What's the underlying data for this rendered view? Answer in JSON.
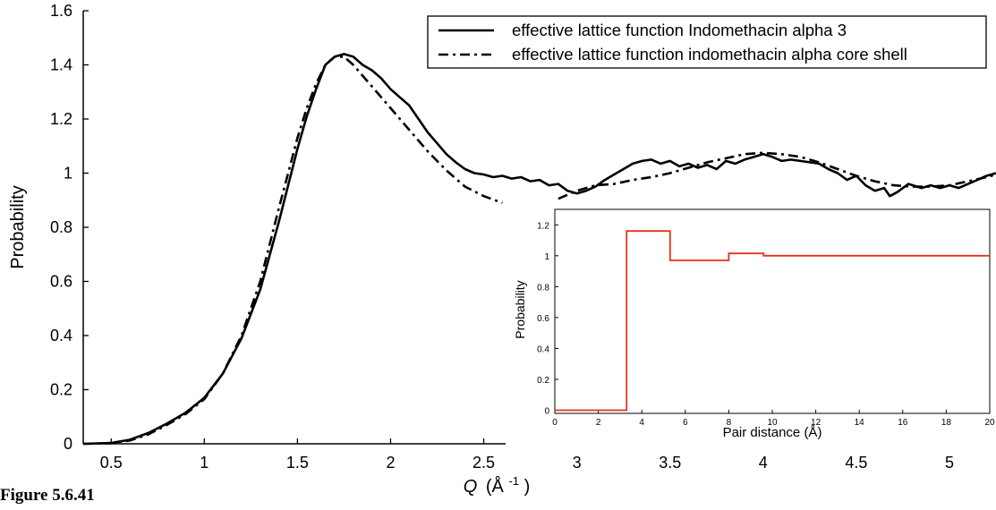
{
  "caption": "Figure 5.6.41",
  "chart_data": [
    {
      "type": "line",
      "title": "",
      "xlabel_symbol": "Q",
      "xlabel_units": "(Å",
      "xlabel_sup": "-1",
      "xlabel_close": ")",
      "ylabel": "Probability",
      "xlim": [
        0.35,
        5.25
      ],
      "ylim": [
        0,
        1.6
      ],
      "xticks": [
        0.5,
        1,
        1.5,
        2,
        2.5,
        3,
        3.5,
        4,
        4.5,
        5
      ],
      "xtick_labels": [
        "0.5",
        "1",
        "1.5",
        "2",
        "2.5",
        "3",
        "3.5",
        "4",
        "4.5",
        "5"
      ],
      "yticks": [
        0,
        0.2,
        0.4,
        0.6,
        0.8,
        1,
        1.2,
        1.4,
        1.6
      ],
      "ytick_labels": [
        "0",
        "0.2",
        "0.4",
        "0.6",
        "0.8",
        "1",
        "1.2",
        "1.4",
        "1.6"
      ],
      "grid": false,
      "legend_position": "top-right",
      "series": [
        {
          "name": "effective lattice function Indomethacin alpha 3",
          "style": "solid",
          "color": "#000000",
          "points": [
            [
              0.35,
              0.0
            ],
            [
              0.5,
              0.003
            ],
            [
              0.6,
              0.015
            ],
            [
              0.7,
              0.04
            ],
            [
              0.8,
              0.075
            ],
            [
              0.9,
              0.115
            ],
            [
              1.0,
              0.17
            ],
            [
              1.1,
              0.26
            ],
            [
              1.2,
              0.39
            ],
            [
              1.3,
              0.57
            ],
            [
              1.4,
              0.82
            ],
            [
              1.5,
              1.09
            ],
            [
              1.55,
              1.21
            ],
            [
              1.6,
              1.31
            ],
            [
              1.65,
              1.4
            ],
            [
              1.7,
              1.43
            ],
            [
              1.75,
              1.44
            ],
            [
              1.8,
              1.43
            ],
            [
              1.85,
              1.4
            ],
            [
              1.9,
              1.38
            ],
            [
              1.95,
              1.35
            ],
            [
              2.0,
              1.31
            ],
            [
              2.05,
              1.28
            ],
            [
              2.1,
              1.25
            ],
            [
              2.15,
              1.2
            ],
            [
              2.2,
              1.15
            ],
            [
              2.25,
              1.11
            ],
            [
              2.3,
              1.07
            ],
            [
              2.35,
              1.04
            ],
            [
              2.4,
              1.015
            ],
            [
              2.45,
              1.0
            ],
            [
              2.5,
              0.995
            ],
            [
              2.55,
              0.985
            ],
            [
              2.6,
              0.99
            ],
            [
              2.65,
              0.98
            ],
            [
              2.7,
              0.985
            ],
            [
              2.75,
              0.97
            ],
            [
              2.8,
              0.975
            ],
            [
              2.85,
              0.955
            ],
            [
              2.9,
              0.96
            ],
            [
              2.95,
              0.935
            ],
            [
              3.0,
              0.925
            ],
            [
              3.05,
              0.935
            ],
            [
              3.1,
              0.95
            ],
            [
              3.15,
              0.975
            ],
            [
              3.2,
              0.995
            ],
            [
              3.25,
              1.015
            ],
            [
              3.3,
              1.035
            ],
            [
              3.35,
              1.045
            ],
            [
              3.4,
              1.05
            ],
            [
              3.45,
              1.035
            ],
            [
              3.5,
              1.045
            ],
            [
              3.55,
              1.025
            ],
            [
              3.6,
              1.035
            ],
            [
              3.65,
              1.02
            ],
            [
              3.7,
              1.03
            ],
            [
              3.75,
              1.015
            ],
            [
              3.8,
              1.045
            ],
            [
              3.85,
              1.035
            ],
            [
              3.9,
              1.05
            ],
            [
              3.95,
              1.06
            ],
            [
              4.0,
              1.07
            ],
            [
              4.05,
              1.06
            ],
            [
              4.1,
              1.045
            ],
            [
              4.15,
              1.05
            ],
            [
              4.2,
              1.045
            ],
            [
              4.25,
              1.04
            ],
            [
              4.3,
              1.035
            ],
            [
              4.35,
              1.015
            ],
            [
              4.4,
              1.0
            ],
            [
              4.45,
              0.975
            ],
            [
              4.5,
              0.99
            ],
            [
              4.55,
              0.955
            ],
            [
              4.6,
              0.935
            ],
            [
              4.65,
              0.945
            ],
            [
              4.68,
              0.915
            ],
            [
              4.72,
              0.93
            ],
            [
              4.78,
              0.96
            ],
            [
              4.85,
              0.945
            ],
            [
              4.9,
              0.955
            ],
            [
              4.95,
              0.945
            ],
            [
              5.0,
              0.955
            ],
            [
              5.05,
              0.945
            ],
            [
              5.1,
              0.96
            ],
            [
              5.15,
              0.975
            ],
            [
              5.2,
              0.99
            ],
            [
              5.25,
              1.0
            ]
          ]
        },
        {
          "name": "effective lattice function indomethacin alpha core shell",
          "style": "dashdot",
          "color": "#000000",
          "points": [
            [
              0.35,
              0.0
            ],
            [
              0.5,
              0.002
            ],
            [
              0.6,
              0.012
            ],
            [
              0.7,
              0.035
            ],
            [
              0.8,
              0.07
            ],
            [
              0.9,
              0.11
            ],
            [
              1.0,
              0.165
            ],
            [
              1.1,
              0.26
            ],
            [
              1.2,
              0.4
            ],
            [
              1.3,
              0.6
            ],
            [
              1.4,
              0.87
            ],
            [
              1.5,
              1.13
            ],
            [
              1.55,
              1.24
            ],
            [
              1.6,
              1.33
            ],
            [
              1.65,
              1.4
            ],
            [
              1.7,
              1.43
            ],
            [
              1.75,
              1.43
            ],
            [
              1.8,
              1.4
            ],
            [
              1.85,
              1.36
            ],
            [
              1.9,
              1.32
            ],
            [
              2.0,
              1.24
            ],
            [
              2.1,
              1.16
            ],
            [
              2.2,
              1.08
            ],
            [
              2.3,
              1.01
            ],
            [
              2.4,
              0.95
            ],
            [
              2.5,
              0.915
            ],
            [
              2.6,
              0.89
            ]
          ],
          "points_2": [
            [
              2.9,
              0.905
            ],
            [
              3.0,
              0.935
            ],
            [
              3.1,
              0.955
            ],
            [
              3.2,
              0.96
            ],
            [
              3.3,
              0.975
            ],
            [
              3.4,
              0.985
            ],
            [
              3.5,
              1.0
            ],
            [
              3.6,
              1.02
            ],
            [
              3.7,
              1.04
            ],
            [
              3.8,
              1.055
            ],
            [
              3.9,
              1.07
            ],
            [
              4.0,
              1.075
            ],
            [
              4.1,
              1.07
            ],
            [
              4.2,
              1.06
            ],
            [
              4.3,
              1.04
            ],
            [
              4.4,
              1.015
            ],
            [
              4.5,
              0.99
            ],
            [
              4.6,
              0.97
            ],
            [
              4.7,
              0.955
            ],
            [
              4.8,
              0.95
            ],
            [
              4.9,
              0.95
            ],
            [
              5.0,
              0.955
            ],
            [
              5.1,
              0.97
            ],
            [
              5.2,
              0.985
            ],
            [
              5.25,
              0.995
            ]
          ]
        }
      ]
    },
    {
      "type": "line",
      "title": "",
      "xlabel": "Pair distance (Å)",
      "ylabel": "Probability",
      "xlim": [
        0,
        20
      ],
      "ylim": [
        -0.02,
        1.3
      ],
      "xticks": [
        0,
        2,
        4,
        6,
        8,
        10,
        12,
        14,
        16,
        18,
        20
      ],
      "xtick_labels": [
        "0",
        "2",
        "4",
        "6",
        "8",
        "10",
        "12",
        "14",
        "16",
        "18",
        "20"
      ],
      "yticks": [
        0,
        0.2,
        0.4,
        0.6,
        0.8,
        1,
        1.2
      ],
      "ytick_labels": [
        "0",
        "0.2",
        "0.4",
        "0.6",
        "0.8",
        "1",
        "1.2"
      ],
      "grid": false,
      "series": [
        {
          "color": "#e8301e",
          "points": [
            [
              0,
              0
            ],
            [
              3.3,
              0
            ],
            [
              3.3,
              1.16
            ],
            [
              5.3,
              1.16
            ],
            [
              5.3,
              0.97
            ],
            [
              8.0,
              0.97
            ],
            [
              8.0,
              1.015
            ],
            [
              9.6,
              1.015
            ],
            [
              9.6,
              1.0
            ],
            [
              20,
              1.0
            ]
          ]
        }
      ]
    }
  ]
}
